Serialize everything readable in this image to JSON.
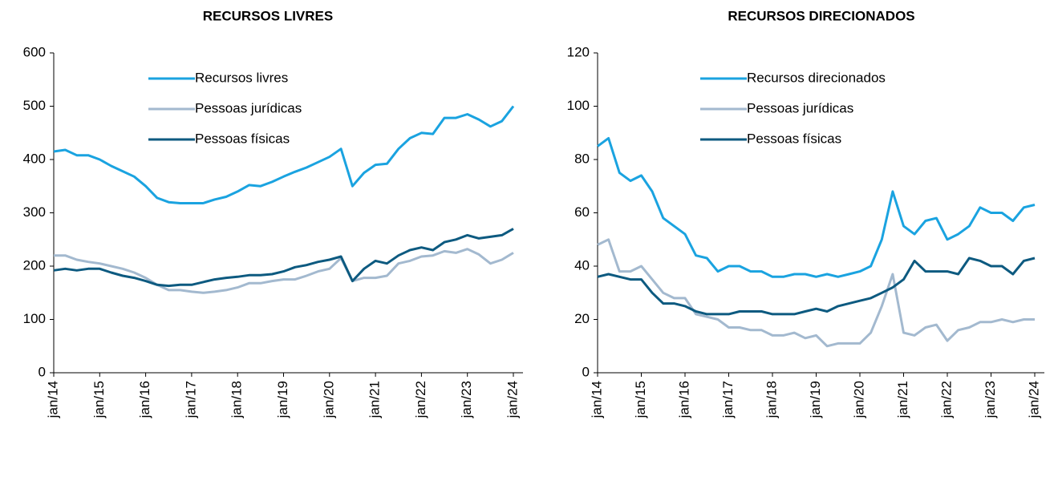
{
  "chart_data": [
    {
      "type": "line",
      "title": "RECURSOS LIVRES",
      "categories": [
        "jan/14",
        null,
        null,
        null,
        "jan/15",
        null,
        null,
        null,
        "jan/16",
        null,
        null,
        null,
        "jan/17",
        null,
        null,
        null,
        "jan/18",
        null,
        null,
        null,
        "jan/19",
        null,
        null,
        null,
        "jan/20",
        null,
        null,
        null,
        "jan/21",
        null,
        null,
        null,
        "jan/22",
        null,
        null,
        null,
        "jan/23",
        null,
        null,
        null,
        "jan/24"
      ],
      "series": [
        {
          "name": "Recursos livres",
          "color": "#1aa3e0",
          "values": [
            415,
            418,
            408,
            408,
            400,
            388,
            378,
            368,
            350,
            328,
            320,
            318,
            318,
            318,
            325,
            330,
            340,
            352,
            350,
            358,
            368,
            377,
            385,
            395,
            405,
            420,
            350,
            375,
            390,
            392,
            420,
            440,
            450,
            448,
            478,
            478,
            485,
            475,
            462,
            472,
            500
          ]
        },
        {
          "name": "Pessoas jurídicas",
          "color": "#a3b9cf",
          "values": [
            220,
            220,
            212,
            208,
            205,
            200,
            195,
            188,
            178,
            165,
            155,
            155,
            152,
            150,
            152,
            155,
            160,
            168,
            168,
            172,
            175,
            175,
            182,
            190,
            195,
            215,
            172,
            178,
            178,
            182,
            205,
            210,
            218,
            220,
            228,
            225,
            232,
            222,
            205,
            212,
            225
          ]
        },
        {
          "name": "Pessoas físicas",
          "color": "#0d5a80",
          "values": [
            192,
            195,
            192,
            195,
            195,
            188,
            182,
            178,
            172,
            165,
            163,
            165,
            165,
            170,
            175,
            178,
            180,
            183,
            183,
            185,
            190,
            198,
            202,
            208,
            212,
            218,
            172,
            195,
            210,
            205,
            220,
            230,
            235,
            230,
            245,
            250,
            258,
            252,
            255,
            258,
            270
          ]
        }
      ],
      "ylim": [
        0,
        600
      ],
      "yticks": [
        0,
        100,
        200,
        300,
        400,
        500,
        600
      ]
    },
    {
      "type": "line",
      "title": "RECURSOS DIRECIONADOS",
      "categories": [
        "jan/14",
        null,
        null,
        null,
        "jan/15",
        null,
        null,
        null,
        "jan/16",
        null,
        null,
        null,
        "jan/17",
        null,
        null,
        null,
        "jan/18",
        null,
        null,
        null,
        "jan/19",
        null,
        null,
        null,
        "jan/20",
        null,
        null,
        null,
        "jan/21",
        null,
        null,
        null,
        "jan/22",
        null,
        null,
        null,
        "jan/23",
        null,
        null,
        null,
        "jan/24"
      ],
      "series": [
        {
          "name": "Recursos direcionados",
          "color": "#1aa3e0",
          "values": [
            85,
            88,
            75,
            72,
            74,
            68,
            58,
            55,
            52,
            44,
            43,
            38,
            40,
            40,
            38,
            38,
            36,
            36,
            37,
            37,
            36,
            37,
            36,
            37,
            38,
            40,
            50,
            68,
            55,
            52,
            57,
            58,
            50,
            52,
            55,
            62,
            60,
            60,
            57,
            62,
            63
          ]
        },
        {
          "name": "Pessoas jurídicas",
          "color": "#a3b9cf",
          "values": [
            48,
            50,
            38,
            38,
            40,
            35,
            30,
            28,
            28,
            22,
            21,
            20,
            17,
            17,
            16,
            16,
            14,
            14,
            15,
            13,
            14,
            10,
            11,
            11,
            11,
            15,
            25,
            37,
            15,
            14,
            17,
            18,
            12,
            16,
            17,
            19,
            19,
            20,
            19,
            20,
            20
          ]
        },
        {
          "name": "Pessoas físicas",
          "color": "#0d5a80",
          "values": [
            36,
            37,
            36,
            35,
            35,
            30,
            26,
            26,
            25,
            23,
            22,
            22,
            22,
            23,
            23,
            23,
            22,
            22,
            22,
            23,
            24,
            23,
            25,
            26,
            27,
            28,
            30,
            32,
            35,
            42,
            38,
            38,
            38,
            37,
            43,
            42,
            40,
            40,
            37,
            42,
            43
          ]
        }
      ],
      "ylim": [
        0,
        120
      ],
      "yticks": [
        0,
        20,
        40,
        60,
        80,
        100,
        120
      ]
    }
  ]
}
